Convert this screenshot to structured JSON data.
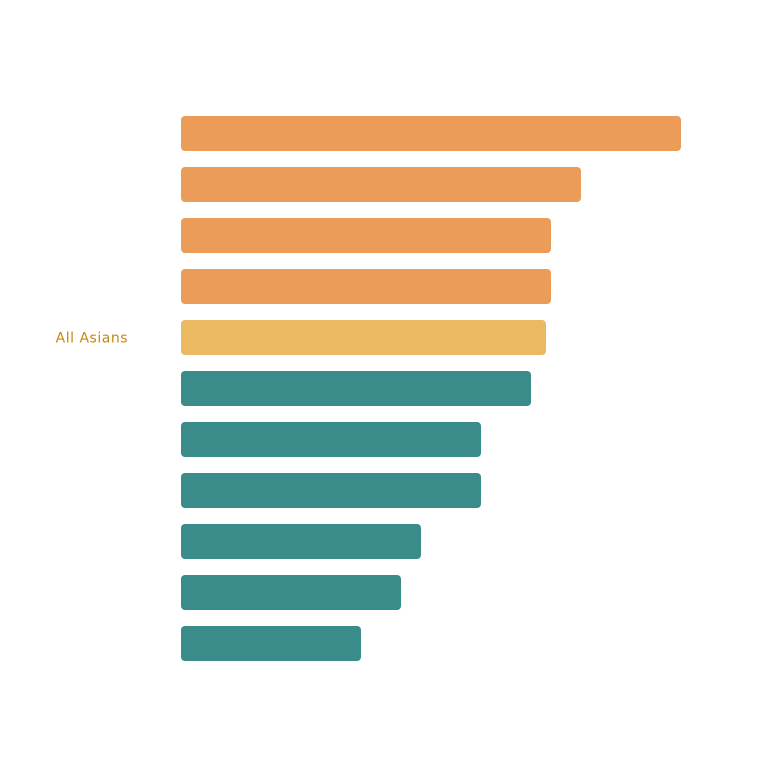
{
  "chart_data": {
    "type": "bar",
    "orientation": "horizontal",
    "title": "",
    "xlabel": "",
    "ylabel": "",
    "grid": false,
    "legend": "none",
    "categories": [
      "",
      "",
      "",
      "",
      "All Asians",
      "",
      "",
      "",
      "",
      "",
      ""
    ],
    "values": [
      100,
      80,
      74,
      74,
      73,
      70,
      60,
      60,
      48,
      44,
      36
    ],
    "groups": [
      "above",
      "above",
      "above",
      "above",
      "average",
      "below",
      "below",
      "below",
      "below",
      "below",
      "below"
    ],
    "xlim": [
      0,
      100
    ]
  },
  "colors": {
    "above": "#EC9C59",
    "average": "#EBB962",
    "below": "#3A8C8A",
    "label": "#C8860F"
  }
}
